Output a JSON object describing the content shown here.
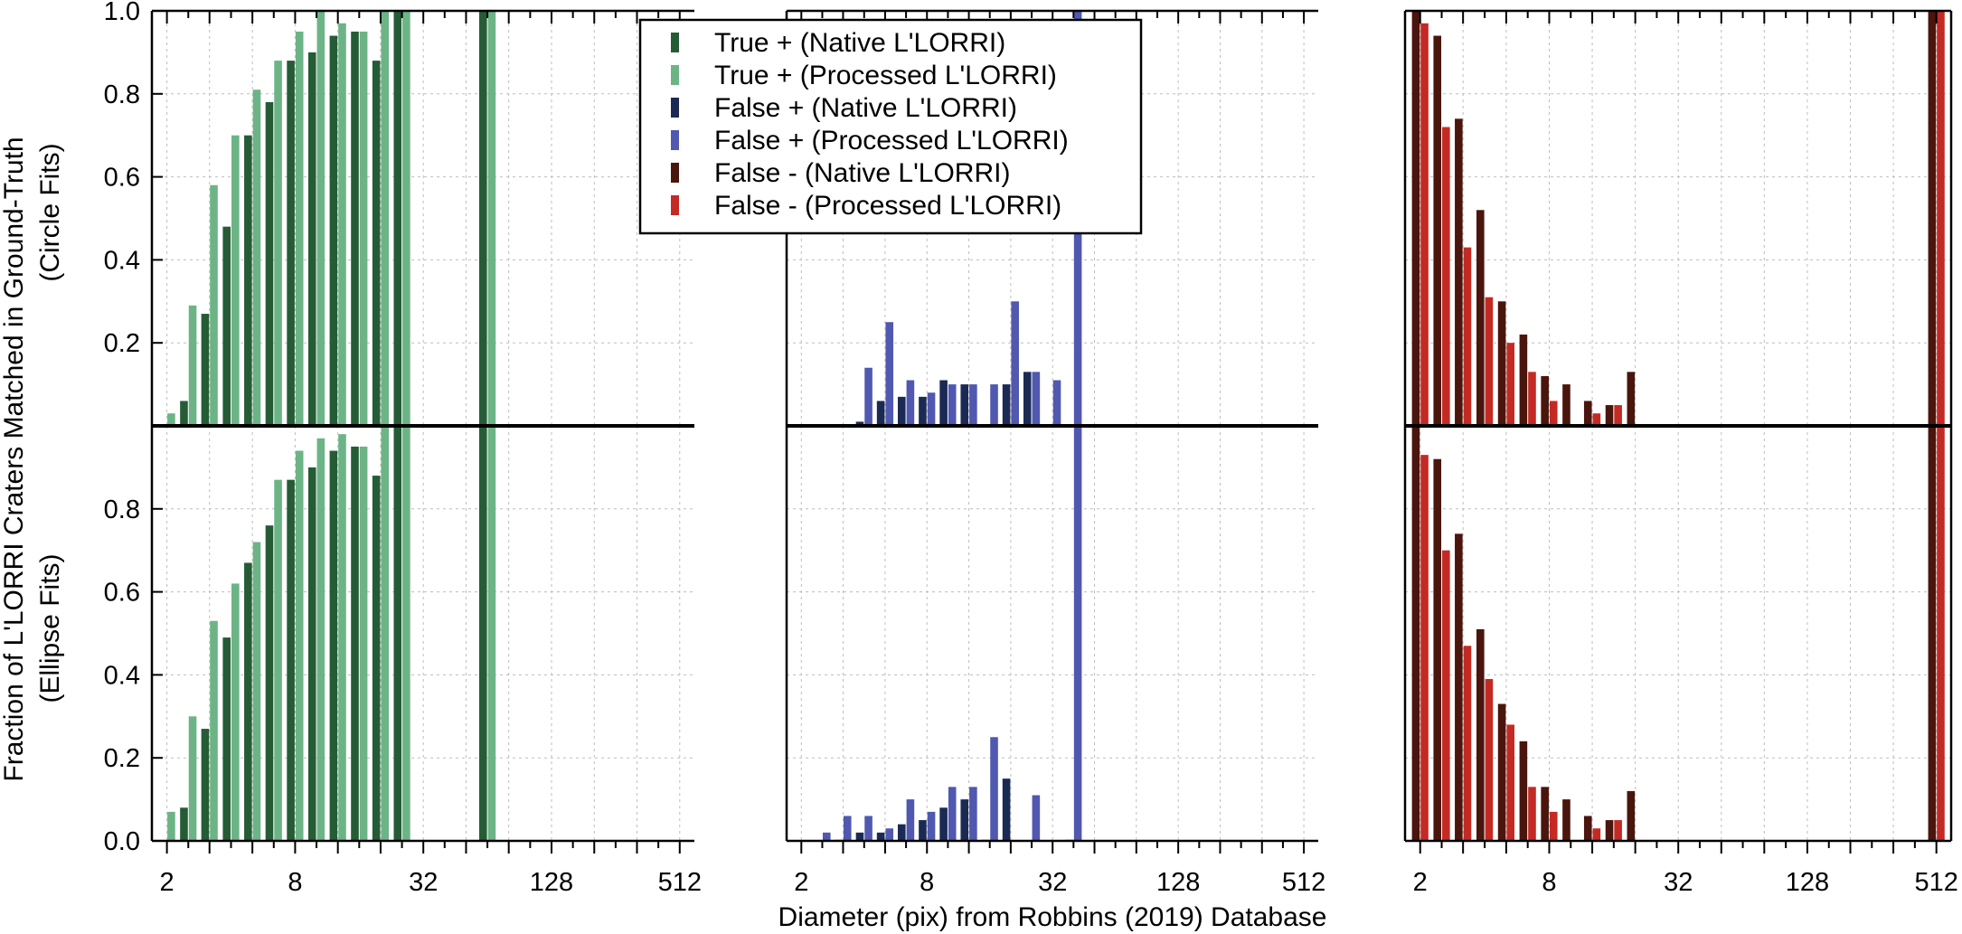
{
  "chart_data": {
    "type": "bar",
    "xlabel": "Diameter (pix) from Robbins (2019) Database",
    "ylabel": "Fraction of L'LORRI Craters Matched in Ground-Truth",
    "x_scale": "log2",
    "x_ticks": [
      "2",
      "8",
      "32",
      "128",
      "512"
    ],
    "xlim": [
      1.7,
      600
    ],
    "rows": [
      {
        "name": "Circle Fits",
        "label": "(Circle Fits)",
        "ylim": [
          0,
          1.0
        ],
        "y_ticks": [
          "0.2",
          "0.4",
          "0.6",
          "0.8",
          "1.0"
        ]
      },
      {
        "name": "Ellipse Fits",
        "label": "(Ellipse Fits)",
        "ylim": [
          0,
          1.0
        ],
        "y_ticks": [
          "0.0",
          "0.2",
          "0.4",
          "0.6",
          "0.8"
        ]
      }
    ],
    "bins": [
      2,
      2.52,
      3.17,
      4,
      5.04,
      6.35,
      8,
      10.08,
      12.7,
      16,
      20.16,
      25.4,
      32,
      40.3,
      50.8,
      64,
      80.6,
      101.6,
      128,
      161.3,
      203.2,
      256,
      322.5,
      406.4,
      512
    ],
    "legend": [
      {
        "label": "True + (Native L'LORRI)",
        "color": "#255c36"
      },
      {
        "label": "True + (Processed L'LORRI)",
        "color": "#6cb486"
      },
      {
        "label": "False + (Native L'LORRI)",
        "color": "#1b2a55"
      },
      {
        "label": "False + (Processed L'LORRI)",
        "color": "#5058b0"
      },
      {
        "label": "False - (Native L'LORRI)",
        "color": "#4a150d"
      },
      {
        "label": "False - (Processed L'LORRI)",
        "color": "#c42a24"
      }
    ],
    "panels": [
      {
        "row": 0,
        "col": 0,
        "series": [
          {
            "name": "True + (Native L'LORRI)",
            "values": [
              null,
              0.06,
              0.27,
              0.48,
              0.7,
              0.78,
              0.88,
              0.9,
              0.94,
              0.95,
              0.88,
              1.0,
              null,
              null,
              null,
              1.0,
              null,
              null,
              null,
              null,
              null,
              null,
              null,
              null,
              null
            ]
          },
          {
            "name": "True + (Processed L'LORRI)",
            "values": [
              0.03,
              0.29,
              0.58,
              0.7,
              0.81,
              0.88,
              0.95,
              1.0,
              0.97,
              0.95,
              1.0,
              1.0,
              null,
              null,
              null,
              1.0,
              null,
              null,
              null,
              null,
              null,
              null,
              null,
              null,
              null
            ]
          }
        ]
      },
      {
        "row": 0,
        "col": 1,
        "series": [
          {
            "name": "False + (Native L'LORRI)",
            "values": [
              null,
              null,
              0.0,
              0.01,
              0.06,
              0.07,
              0.07,
              0.11,
              0.1,
              0.0,
              0.1,
              0.13,
              null,
              0.0,
              null,
              null,
              null,
              null,
              null,
              null,
              null,
              null,
              null,
              null,
              null
            ]
          },
          {
            "name": "False + (Processed L'LORRI)",
            "values": [
              null,
              null,
              0.0,
              0.14,
              0.25,
              0.11,
              0.08,
              0.1,
              0.1,
              0.1,
              0.3,
              0.13,
              0.11,
              1.0,
              null,
              null,
              null,
              null,
              null,
              null,
              null,
              null,
              null,
              null,
              null
            ]
          }
        ]
      },
      {
        "row": 0,
        "col": 2,
        "series": [
          {
            "name": "False - (Native L'LORRI)",
            "values": [
              1.0,
              0.94,
              0.74,
              0.52,
              0.3,
              0.22,
              0.12,
              0.1,
              0.06,
              0.05,
              0.13,
              null,
              null,
              null,
              null,
              null,
              null,
              null,
              null,
              null,
              null,
              null,
              null,
              null,
              1.0
            ]
          },
          {
            "name": "False - (Processed L'LORRI)",
            "values": [
              0.97,
              0.72,
              0.43,
              0.31,
              0.2,
              0.13,
              0.06,
              null,
              0.03,
              0.05,
              null,
              null,
              null,
              null,
              null,
              null,
              null,
              null,
              null,
              null,
              null,
              null,
              null,
              null,
              1.0
            ]
          }
        ]
      },
      {
        "row": 1,
        "col": 0,
        "series": [
          {
            "name": "True + (Native L'LORRI)",
            "values": [
              null,
              0.08,
              0.27,
              0.49,
              0.67,
              0.76,
              0.87,
              0.9,
              0.94,
              0.95,
              0.88,
              1.0,
              null,
              null,
              null,
              1.0,
              null,
              null,
              null,
              null,
              null,
              null,
              null,
              null,
              null
            ]
          },
          {
            "name": "True + (Processed L'LORRI)",
            "values": [
              0.07,
              0.3,
              0.53,
              0.62,
              0.72,
              0.87,
              0.94,
              0.97,
              0.98,
              0.95,
              1.0,
              1.0,
              null,
              null,
              null,
              1.0,
              null,
              null,
              null,
              null,
              null,
              null,
              null,
              null,
              null
            ]
          }
        ]
      },
      {
        "row": 1,
        "col": 1,
        "series": [
          {
            "name": "False + (Native L'LORRI)",
            "values": [
              null,
              null,
              0.0,
              0.02,
              0.02,
              0.04,
              0.05,
              0.08,
              0.1,
              0.0,
              0.15,
              null,
              null,
              0.0,
              null,
              null,
              null,
              null,
              null,
              null,
              null,
              null,
              null,
              null,
              null
            ]
          },
          {
            "name": "False + (Processed L'LORRI)",
            "values": [
              null,
              0.02,
              0.06,
              0.06,
              0.03,
              0.1,
              0.07,
              0.13,
              0.13,
              0.25,
              null,
              0.11,
              null,
              1.0,
              null,
              null,
              null,
              null,
              null,
              null,
              null,
              null,
              null,
              null,
              null
            ]
          }
        ]
      },
      {
        "row": 1,
        "col": 2,
        "series": [
          {
            "name": "False - (Native L'LORRI)",
            "values": [
              1.0,
              0.92,
              0.74,
              0.51,
              0.33,
              0.24,
              0.13,
              0.1,
              0.06,
              0.05,
              0.12,
              null,
              null,
              null,
              null,
              null,
              null,
              null,
              null,
              null,
              null,
              null,
              null,
              null,
              1.0
            ]
          },
          {
            "name": "False - (Processed L'LORRI)",
            "values": [
              0.93,
              0.7,
              0.47,
              0.39,
              0.28,
              0.13,
              0.07,
              null,
              0.03,
              0.05,
              null,
              null,
              null,
              null,
              null,
              null,
              null,
              null,
              null,
              null,
              null,
              null,
              null,
              null,
              1.0
            ]
          }
        ]
      }
    ]
  }
}
